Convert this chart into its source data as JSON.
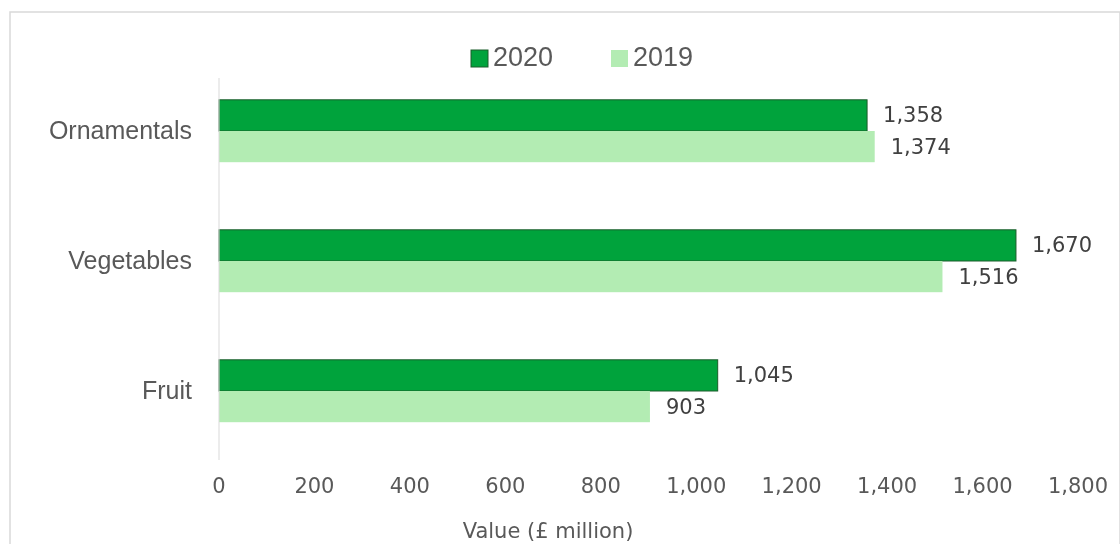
{
  "chart_data": {
    "type": "bar",
    "orientation": "horizontal",
    "xlabel": "Value (£ million)",
    "categories": [
      "Ornamentals",
      "Vegetables",
      "Fruit"
    ],
    "series": [
      {
        "name": "2020",
        "color": "#00a33c",
        "values": [
          1358,
          1670,
          1045
        ],
        "value_labels": [
          "1,358",
          "1,670",
          "1,045"
        ]
      },
      {
        "name": "2019",
        "color": "#b3ecb3",
        "values": [
          1374,
          1516,
          903
        ],
        "value_labels": [
          "1,374",
          "1,516",
          "903"
        ]
      }
    ],
    "xlim": [
      0,
      1800
    ],
    "xticks": [
      0,
      {
        "value": 200,
        "label": "200"
      },
      {
        "value": 400,
        "label": "400"
      },
      {
        "value": 600,
        "label": "600"
      },
      {
        "value": 800,
        "label": "800"
      },
      {
        "value": 1000,
        "label": "1,000"
      },
      {
        "value": 1200,
        "label": "1,200"
      },
      {
        "value": 1400,
        "label": "1,400"
      },
      {
        "value": 1600,
        "label": "1,600"
      },
      {
        "value": 1800,
        "label": "1,800"
      }
    ],
    "legend": "top"
  }
}
